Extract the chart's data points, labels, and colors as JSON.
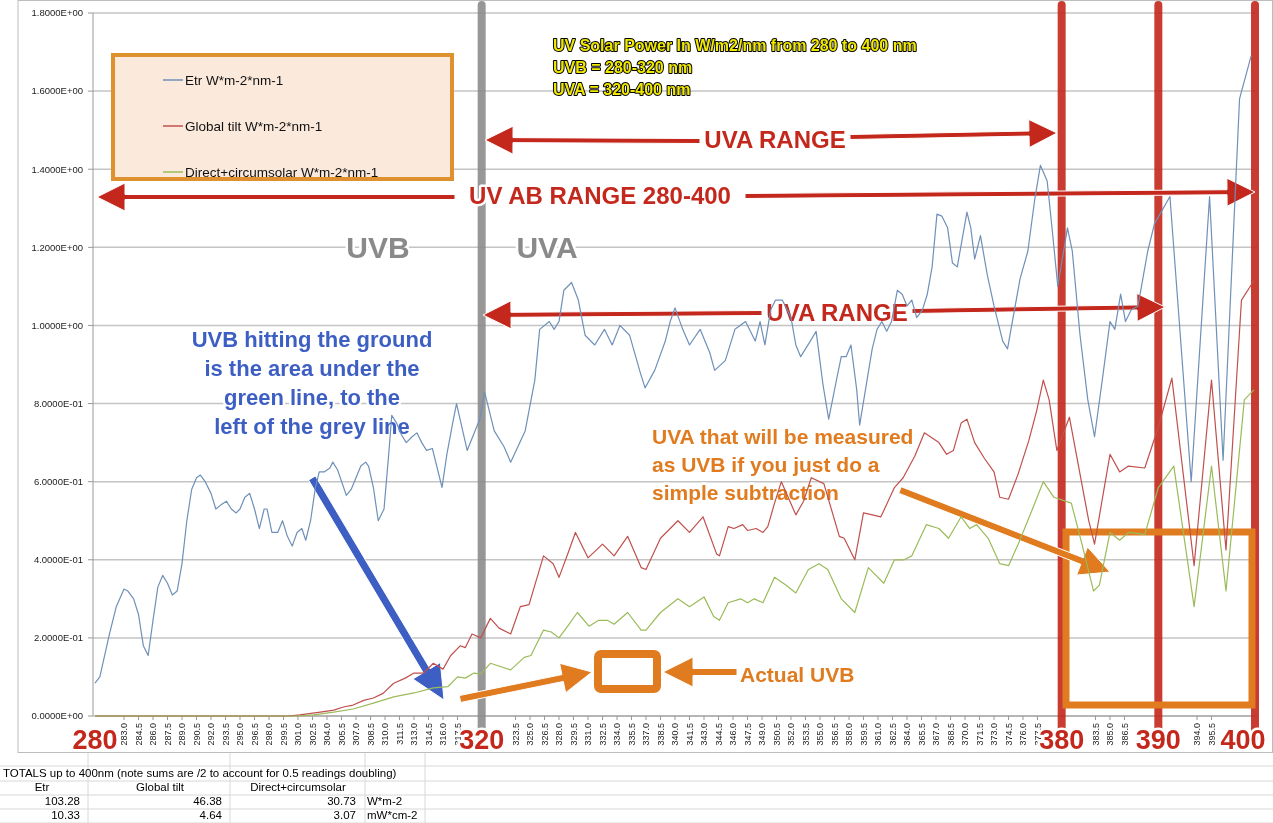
{
  "chart_data": {
    "type": "line",
    "series": [
      {
        "name": "Etr W*m-2*nm-1",
        "color": "#6f90b8",
        "x": [
          280,
          280.5,
          281.5,
          282.2,
          283,
          283.4,
          284,
          284.5,
          285,
          285.5,
          286,
          286.5,
          287,
          287.5,
          288,
          288.5,
          289,
          289.5,
          290,
          290.5,
          290.9,
          291.4,
          292,
          292.5,
          293,
          293.6,
          294.1,
          294.6,
          295,
          295.5,
          296,
          296.5,
          297,
          297.5,
          297.8,
          298.3,
          298.9,
          299.4,
          299.9,
          300.4,
          300.9,
          301.4,
          301.8,
          302.3,
          302.8,
          303.2,
          303.7,
          304.3,
          304.6,
          305.1,
          306,
          306.5,
          307,
          307.5,
          308,
          308.3,
          308.8,
          309.3,
          309.9,
          310.4,
          310.7,
          311.2,
          311.7,
          312.2,
          312.8,
          313.3,
          313.8,
          314.3,
          314.9,
          315.4,
          315.9,
          316.4,
          317,
          317.4,
          318.5,
          319.8,
          320.3,
          321.3,
          322.3,
          323,
          324.5,
          325.5,
          326,
          327,
          327.5,
          328,
          328.5,
          329.3,
          330,
          330.7,
          331.7,
          332.7,
          333.5,
          334.3,
          335.3,
          336.4,
          336.9,
          337.9,
          339,
          339.5,
          340,
          340.8,
          341.5,
          342.6,
          343.6,
          344.1,
          345.2,
          346.2,
          347.3,
          348.3,
          348.8,
          349.3,
          349.9,
          350.4,
          351.1,
          352,
          352.5,
          353,
          354,
          354.6,
          355.3,
          355.9,
          356.7,
          357.2,
          357.7,
          358.2,
          358.8,
          359.1,
          359.8,
          360.4,
          360.9,
          361.4,
          361.9,
          362.4,
          363,
          363.5,
          364,
          364.5,
          365,
          365.6,
          366.1,
          366.6,
          367.1,
          367.6,
          368.2,
          368.7,
          369.2,
          369.7,
          370.2,
          370.6,
          371,
          371.6,
          372.3,
          373,
          373.9,
          374.4,
          374.9,
          375.7,
          376.5,
          377.2,
          377.8,
          378.5,
          379,
          379.6,
          380.6,
          381.1,
          381.9,
          382.7,
          383.4,
          384.2,
          385,
          385.5,
          386.1,
          386.6,
          387.2,
          387.9,
          388.9,
          389.6,
          391.2,
          393.4,
          395.3,
          396.7,
          398.4,
          399.6
        ],
        "values": [
          0.084,
          0.1,
          0.21,
          0.28,
          0.325,
          0.32,
          0.3,
          0.26,
          0.18,
          0.155,
          0.245,
          0.33,
          0.36,
          0.34,
          0.31,
          0.32,
          0.39,
          0.5,
          0.58,
          0.61,
          0.617,
          0.6,
          0.57,
          0.53,
          0.54,
          0.55,
          0.53,
          0.52,
          0.53,
          0.56,
          0.57,
          0.53,
          0.48,
          0.53,
          0.53,
          0.47,
          0.47,
          0.5,
          0.46,
          0.435,
          0.47,
          0.48,
          0.45,
          0.5,
          0.585,
          0.625,
          0.625,
          0.635,
          0.65,
          0.63,
          0.565,
          0.58,
          0.61,
          0.64,
          0.65,
          0.64,
          0.585,
          0.5,
          0.53,
          0.675,
          0.77,
          0.75,
          0.72,
          0.7,
          0.715,
          0.725,
          0.7,
          0.68,
          0.685,
          0.635,
          0.585,
          0.67,
          0.75,
          0.8,
          0.68,
          0.76,
          0.83,
          0.73,
          0.69,
          0.65,
          0.73,
          0.86,
          0.99,
          1.01,
          0.99,
          1.01,
          1.09,
          1.11,
          1.065,
          0.975,
          0.95,
          0.99,
          0.95,
          1.0,
          0.975,
          0.88,
          0.84,
          0.885,
          0.96,
          1.01,
          1.045,
          0.99,
          0.95,
          0.99,
          0.93,
          0.885,
          0.91,
          0.99,
          1.01,
          0.96,
          1.01,
          0.95,
          1.04,
          1.065,
          1.065,
          1.02,
          0.95,
          0.92,
          0.96,
          0.985,
          0.85,
          0.76,
          0.86,
          0.92,
          0.92,
          0.95,
          0.835,
          0.745,
          0.85,
          0.94,
          0.99,
          1.01,
          0.985,
          1.01,
          1.09,
          1.08,
          1.05,
          1.065,
          1.02,
          1.04,
          1.08,
          1.15,
          1.285,
          1.28,
          1.25,
          1.16,
          1.15,
          1.22,
          1.29,
          1.25,
          1.17,
          1.23,
          1.13,
          1.05,
          0.96,
          0.94,
          1.01,
          1.12,
          1.19,
          1.32,
          1.41,
          1.37,
          1.25,
          1.1,
          1.25,
          1.19,
          0.975,
          0.81,
          0.715,
          0.86,
          1.01,
          0.99,
          1.08,
          1.01,
          1.04,
          1.05,
          1.19,
          1.26,
          1.33,
          0.6,
          1.33,
          0.655,
          1.58,
          1.69
        ]
      },
      {
        "name": "Global tilt  W*m-2*nm-1",
        "color": "#c0504d",
        "x": [
          280,
          300,
          301.2,
          303.3,
          304.7,
          305.7,
          306.7,
          307.8,
          308.8,
          309.8,
          310.9,
          312.1,
          313,
          314,
          315,
          316,
          316.8,
          317.8,
          318.3,
          319,
          319.9,
          320.9,
          321.8,
          323,
          324,
          324.9,
          326.4,
          327.4,
          328,
          328.9,
          329.7,
          331,
          332.5,
          333.7,
          335.1,
          336.5,
          337,
          338.5,
          340.3,
          341.5,
          342.9,
          344.3,
          344.6,
          345.5,
          346.1,
          347,
          347.5,
          348.4,
          349.1,
          349.6,
          350.3,
          351,
          352.5,
          353.3,
          354.1,
          355.4,
          357,
          357.5,
          358.6,
          359.5,
          361.3,
          362.7,
          363.6,
          364.8,
          365.8,
          367.3,
          368.1,
          368.8,
          369.6,
          370.2,
          371,
          372,
          373,
          373.6,
          374.5,
          375.5,
          376.6,
          377.4,
          378.1,
          378.7,
          379.5,
          380.8,
          382.8,
          383.4,
          385,
          386,
          386.9,
          388.6,
          390,
          391.4,
          393.7,
          395.5,
          397,
          398.6,
          399.9
        ],
        "values": [
          0,
          0,
          0.003,
          0.01,
          0.015,
          0.023,
          0.028,
          0.04,
          0.046,
          0.058,
          0.084,
          0.097,
          0.11,
          0.11,
          0.135,
          0.12,
          0.155,
          0.18,
          0.175,
          0.21,
          0.2,
          0.25,
          0.225,
          0.21,
          0.28,
          0.285,
          0.41,
          0.39,
          0.355,
          0.415,
          0.47,
          0.405,
          0.44,
          0.41,
          0.46,
          0.38,
          0.375,
          0.455,
          0.5,
          0.47,
          0.51,
          0.415,
          0.41,
          0.485,
          0.48,
          0.49,
          0.475,
          0.48,
          0.47,
          0.485,
          0.545,
          0.6,
          0.515,
          0.55,
          0.61,
          0.595,
          0.46,
          0.455,
          0.4,
          0.52,
          0.51,
          0.585,
          0.61,
          0.665,
          0.725,
          0.7,
          0.67,
          0.68,
          0.75,
          0.76,
          0.7,
          0.66,
          0.625,
          0.56,
          0.555,
          0.62,
          0.705,
          0.78,
          0.86,
          0.81,
          0.68,
          0.765,
          0.5,
          0.44,
          0.67,
          0.625,
          0.64,
          0.635,
          0.74,
          0.865,
          0.385,
          0.86,
          0.425,
          1.065,
          1.115
        ]
      },
      {
        "name": "Direct+circumsolar W*m-2*nm-1",
        "color": "#9bbb59",
        "x": [
          280,
          301,
          302.6,
          304.7,
          306.7,
          308.8,
          310.9,
          313,
          315,
          316.5,
          317.5,
          318.3,
          319.2,
          319.9,
          320.9,
          323,
          324.4,
          325.1,
          326.4,
          327.2,
          328,
          328.9,
          329.9,
          331.1,
          332.1,
          333,
          333.7,
          335.1,
          336.5,
          337,
          338.5,
          340.3,
          341.5,
          343,
          344,
          344.6,
          345.5,
          346.8,
          347.5,
          348.2,
          349.1,
          350.3,
          351.5,
          352.5,
          353.8,
          354.9,
          355.8,
          357.2,
          358.6,
          360,
          361.6,
          362.7,
          363.7,
          364.5,
          366,
          367.3,
          368.3,
          369.6,
          370.5,
          371.2,
          372.4,
          373.6,
          374.5,
          375.5,
          376.9,
          378.1,
          379.2,
          381,
          382.1,
          383.3,
          383.9,
          385,
          386,
          386.9,
          388.6,
          390,
          391.6,
          393.7,
          395.5,
          397,
          398.9,
          399.9
        ],
        "values": [
          0,
          0,
          0.003,
          0.01,
          0.018,
          0.033,
          0.049,
          0.059,
          0.072,
          0.075,
          0.1,
          0.097,
          0.11,
          0.107,
          0.135,
          0.118,
          0.15,
          0.155,
          0.22,
          0.215,
          0.2,
          0.23,
          0.265,
          0.23,
          0.245,
          0.245,
          0.235,
          0.265,
          0.22,
          0.22,
          0.265,
          0.3,
          0.28,
          0.305,
          0.255,
          0.245,
          0.29,
          0.3,
          0.29,
          0.3,
          0.29,
          0.355,
          0.335,
          0.315,
          0.375,
          0.39,
          0.375,
          0.3,
          0.265,
          0.38,
          0.34,
          0.4,
          0.4,
          0.41,
          0.49,
          0.48,
          0.455,
          0.51,
          0.48,
          0.49,
          0.455,
          0.39,
          0.385,
          0.44,
          0.525,
          0.6,
          0.56,
          0.545,
          0.44,
          0.32,
          0.335,
          0.47,
          0.45,
          0.47,
          0.465,
          0.585,
          0.64,
          0.28,
          0.64,
          0.32,
          0.81,
          0.835
        ]
      }
    ],
    "xlim": [
      280,
      400
    ],
    "ylim": [
      0,
      1.8
    ],
    "yticks": [
      {
        "value": 0,
        "label": "0.0000E+00"
      },
      {
        "value": 0.2,
        "label": "2.0000E-01"
      },
      {
        "value": 0.4,
        "label": "4.0000E-01"
      },
      {
        "value": 0.6,
        "label": "6.0000E-01"
      },
      {
        "value": 0.8,
        "label": "8.0000E-01"
      },
      {
        "value": 1,
        "label": "1.0000E+00"
      },
      {
        "value": 1.2,
        "label": "1.2000E+00"
      },
      {
        "value": 1.4,
        "label": "1.4000E+00"
      },
      {
        "value": 1.6,
        "label": "1.6000E+00"
      },
      {
        "value": 1.8,
        "label": "1.8000E+00"
      }
    ],
    "xticks": [
      {
        "value": 283,
        "label": "283.0"
      },
      {
        "value": 284.5,
        "label": "284.5"
      },
      {
        "value": 286,
        "label": "286.0"
      },
      {
        "value": 287.5,
        "label": "287.5"
      },
      {
        "value": 289,
        "label": "289.0"
      },
      {
        "value": 290.5,
        "label": "290.5"
      },
      {
        "value": 292,
        "label": "292.0"
      },
      {
        "value": 293.5,
        "label": "293.5"
      },
      {
        "value": 295,
        "label": "295.0"
      },
      {
        "value": 296.5,
        "label": "296.5"
      },
      {
        "value": 298,
        "label": "298.0"
      },
      {
        "value": 299.5,
        "label": "299.5"
      },
      {
        "value": 301,
        "label": "301.0"
      },
      {
        "value": 302.5,
        "label": "302.5"
      },
      {
        "value": 304,
        "label": "304.0"
      },
      {
        "value": 305.5,
        "label": "305.5"
      },
      {
        "value": 307,
        "label": "307.0"
      },
      {
        "value": 308.5,
        "label": "308.5"
      },
      {
        "value": 310,
        "label": "310.0"
      },
      {
        "value": 311.5,
        "label": "311.5"
      },
      {
        "value": 313,
        "label": "313.0"
      },
      {
        "value": 314.5,
        "label": "314.5"
      },
      {
        "value": 316,
        "label": "316.0"
      },
      {
        "value": 317.5,
        "label": "317.5"
      },
      {
        "value": 323.5,
        "label": "323.5"
      },
      {
        "value": 325,
        "label": "325.0"
      },
      {
        "value": 326.5,
        "label": "326.5"
      },
      {
        "value": 328,
        "label": "328.0"
      },
      {
        "value": 329.5,
        "label": "329.5"
      },
      {
        "value": 331,
        "label": "331.0"
      },
      {
        "value": 332.5,
        "label": "332.5"
      },
      {
        "value": 334,
        "label": "334.0"
      },
      {
        "value": 335.5,
        "label": "335.5"
      },
      {
        "value": 337,
        "label": "337.0"
      },
      {
        "value": 338.5,
        "label": "338.5"
      },
      {
        "value": 340,
        "label": "340.0"
      },
      {
        "value": 341.5,
        "label": "341.5"
      },
      {
        "value": 343,
        "label": "343.0"
      },
      {
        "value": 344.5,
        "label": "344.5"
      },
      {
        "value": 346,
        "label": "346.0"
      },
      {
        "value": 347.5,
        "label": "347.5"
      },
      {
        "value": 349,
        "label": "349.0"
      },
      {
        "value": 350.5,
        "label": "350.5"
      },
      {
        "value": 352,
        "label": "352.0"
      },
      {
        "value": 353.5,
        "label": "353.5"
      },
      {
        "value": 355,
        "label": "355.0"
      },
      {
        "value": 356.5,
        "label": "356.5"
      },
      {
        "value": 358,
        "label": "358.0"
      },
      {
        "value": 359.5,
        "label": "359.5"
      },
      {
        "value": 361,
        "label": "361.0"
      },
      {
        "value": 362.5,
        "label": "362.5"
      },
      {
        "value": 364,
        "label": "364.0"
      },
      {
        "value": 365.5,
        "label": "365.5"
      },
      {
        "value": 367,
        "label": "367.0"
      },
      {
        "value": 368.5,
        "label": "368.5"
      },
      {
        "value": 370,
        "label": "370.0"
      },
      {
        "value": 371.5,
        "label": "371.5"
      },
      {
        "value": 373,
        "label": "373.0"
      },
      {
        "value": 374.5,
        "label": "374.5"
      },
      {
        "value": 376,
        "label": "376.0"
      },
      {
        "value": 377.5,
        "label": "377.5"
      },
      {
        "value": 383.5,
        "label": "383.5"
      },
      {
        "value": 385,
        "label": "385.0"
      },
      {
        "value": 386.5,
        "label": "386.5"
      },
      {
        "value": 394,
        "label": "394.0"
      },
      {
        "value": 395.5,
        "label": "395.5"
      }
    ],
    "grid": "y",
    "legend": "top left",
    "ref_lines": [
      {
        "axis": "x",
        "value": 320,
        "label": "320",
        "color": "#8c8c8c"
      },
      {
        "axis": "x",
        "value": 380,
        "label": "380",
        "color": "#c4281c"
      },
      {
        "axis": "x",
        "value": 390,
        "label": "390",
        "color": "#c4281c"
      },
      {
        "axis": "x",
        "value": 400,
        "label": "400",
        "color": "#c4281c"
      }
    ],
    "annotations": [
      "UV Solar Power In W/m2/nm from 280 to 400 nm",
      "UVB = 280-320 nm",
      "UVA = 320-400 nm",
      "UVA RANGE",
      "UV AB RANGE 280-400",
      "UVA RANGE",
      "UVB",
      "UVA",
      "UVB hitting the ground is the area under the green line, to the left of the grey line",
      "UVA that will be measured as UVB if you just do a simple subtraction",
      "Actual UVB",
      "TOTALS up to 400nm (note sums are /2 to account for 0.5 readings doubling)",
      "Etr",
      "Global tilt",
      "Direct+circumsolar",
      "103.28",
      "46.38",
      "30.73",
      "W*m-2",
      "10.33",
      "4.64",
      "3.07",
      "mW*cm-2",
      {
        "text": "280",
        "x": 280,
        "y": 0
      }
    ]
  }
}
